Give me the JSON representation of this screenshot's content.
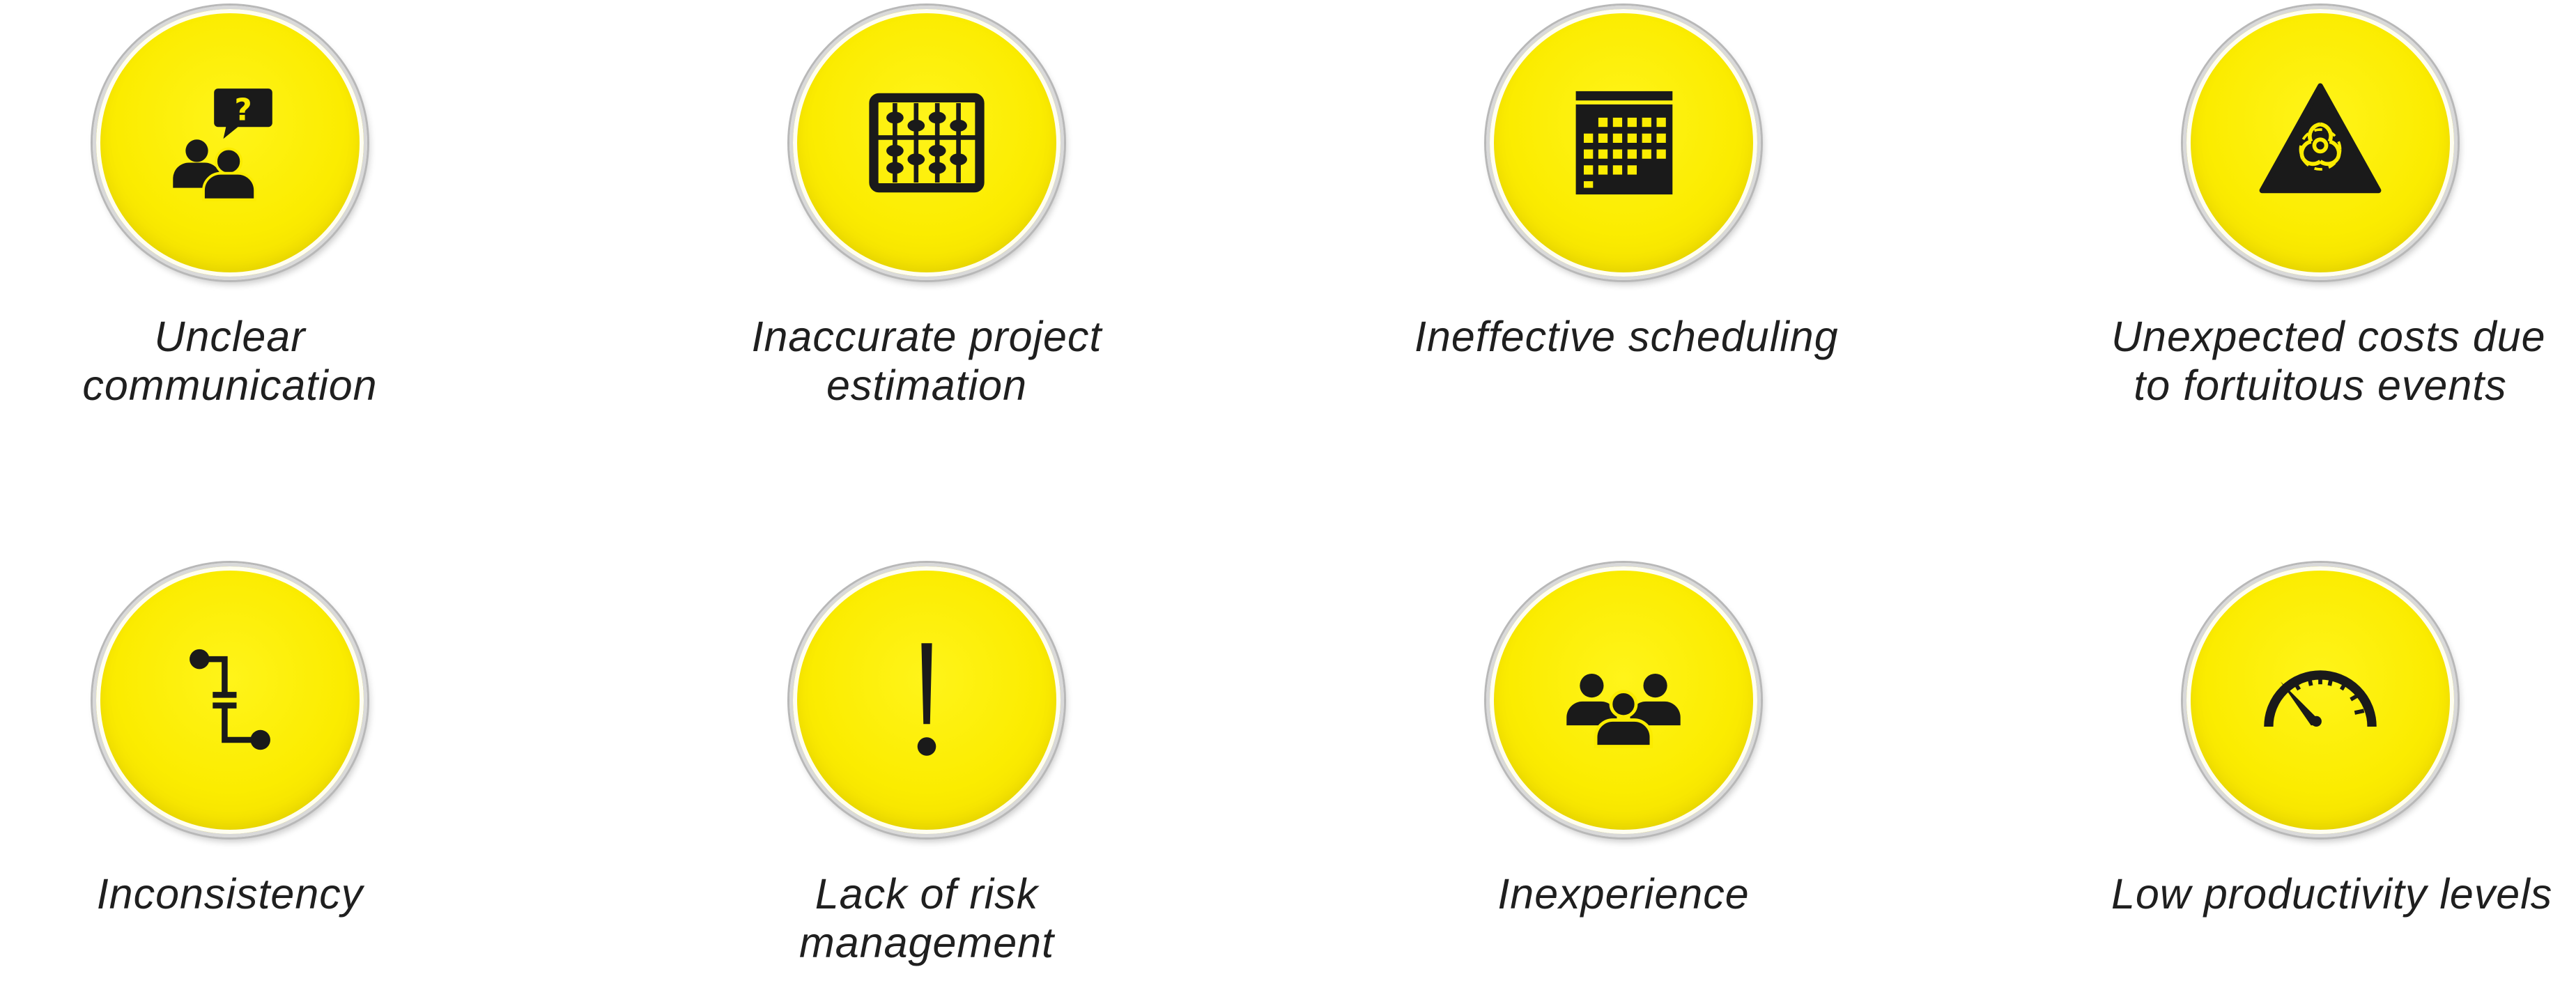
{
  "items": [
    {
      "icon": "people-question-icon",
      "caption": [
        "Unclear",
        "communication"
      ]
    },
    {
      "icon": "abacus-icon",
      "caption": [
        "Inaccurate project",
        "estimation"
      ]
    },
    {
      "icon": "calendar-icon",
      "caption": [
        "Ineffective scheduling",
        ""
      ]
    },
    {
      "icon": "biohazard-warning-icon",
      "caption": [
        "Unexpected costs due",
        "to fortuitous events"
      ]
    },
    {
      "icon": "flow-connector-icon",
      "caption": [
        "Inconsistency",
        ""
      ]
    },
    {
      "icon": "exclamation-icon",
      "caption": [
        "Lack of risk",
        "management"
      ]
    },
    {
      "icon": "group-icon",
      "caption": [
        "Inexperience",
        ""
      ]
    },
    {
      "icon": "speedometer-icon",
      "caption": [
        "Low productivity levels",
        ""
      ]
    }
  ],
  "colors": {
    "disc_yellow": "#fbec00",
    "icon": "#1a1a1a",
    "text": "#1f1f1f",
    "ring": "#c8c8c8"
  }
}
